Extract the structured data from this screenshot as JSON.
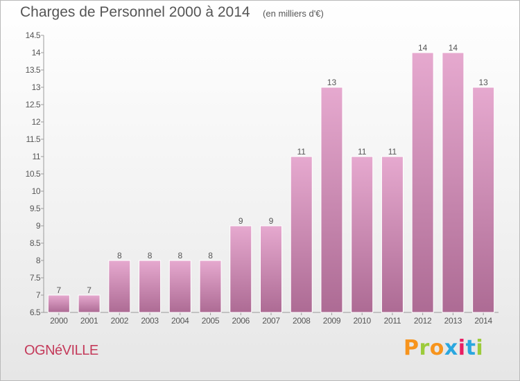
{
  "header": {
    "title": "Charges de Personnel 2000 à 2014",
    "subtitle": "(en milliers d'€)"
  },
  "footer": {
    "commune": "OGNéVILLE",
    "brand": "Proxiti",
    "brand_colors": [
      "#f7941d",
      "#9ccb3b",
      "#f7941d",
      "#2aa7df",
      "#e91e63",
      "#2aa7df",
      "#9ccb3b"
    ]
  },
  "colors": {
    "bar_top": "#e6a9cf",
    "bar_bottom": "#ad6b94",
    "bar_edge": "#ffffff",
    "text": "#555555",
    "commune": "#c43a5a"
  },
  "chart_data": {
    "type": "bar",
    "title": "Charges de Personnel 2000 à 2014",
    "subtitle": "(en milliers d'€)",
    "categories": [
      "2000",
      "2001",
      "2002",
      "2003",
      "2004",
      "2005",
      "2006",
      "2007",
      "2008",
      "2009",
      "2010",
      "2011",
      "2012",
      "2013",
      "2014"
    ],
    "values": [
      7,
      7,
      8,
      8,
      8,
      8,
      9,
      9,
      11,
      13,
      11,
      11,
      14,
      14,
      13
    ],
    "data_labels": [
      "7",
      "7",
      "8",
      "8",
      "8",
      "8",
      "9",
      "9",
      "11",
      "13",
      "11",
      "11",
      "14",
      "14",
      "13"
    ],
    "ylim": [
      6.5,
      14.5
    ],
    "yticks": [
      "6.5",
      "7",
      "7.5",
      "8",
      "8.5",
      "9",
      "9.5",
      "10",
      "10.5",
      "11",
      "11.5",
      "12",
      "12.5",
      "13",
      "13.5",
      "14",
      "14.5"
    ],
    "xlabel": "",
    "ylabel": "",
    "grid": false,
    "legend": "none"
  }
}
